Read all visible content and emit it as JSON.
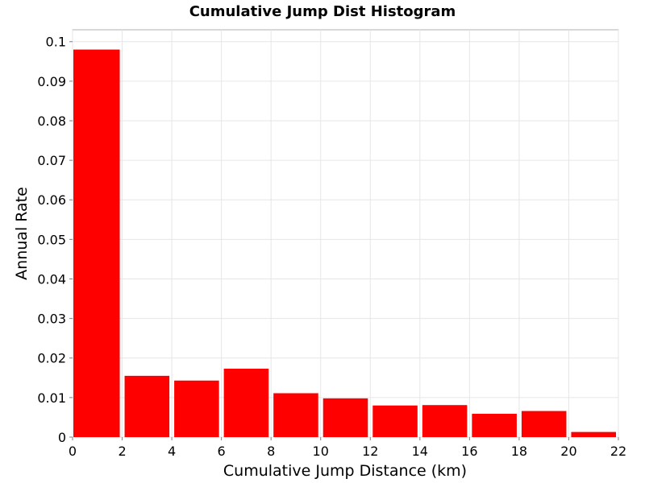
{
  "chart_data": {
    "type": "bar",
    "title": "Cumulative Jump Dist Histogram",
    "xlabel": "Cumulative Jump Distance (km)",
    "ylabel": "Annual Rate",
    "bin_edges": [
      0,
      2,
      4,
      6,
      8,
      10,
      12,
      14,
      16,
      18,
      20,
      22
    ],
    "values": [
      0.098,
      0.0155,
      0.0143,
      0.0173,
      0.0111,
      0.0098,
      0.008,
      0.0081,
      0.0059,
      0.0066,
      0.0013
    ],
    "xlim": [
      0,
      22
    ],
    "ylim": [
      0,
      0.103
    ],
    "x_ticks": [
      "0",
      "2",
      "4",
      "6",
      "8",
      "10",
      "12",
      "14",
      "16",
      "18",
      "20",
      "22"
    ],
    "y_ticks": [
      "0",
      "0.01",
      "0.02",
      "0.03",
      "0.04",
      "0.05",
      "0.06",
      "0.07",
      "0.08",
      "0.09",
      "0.1"
    ],
    "grid": true,
    "bar_color": "#ff0000"
  }
}
